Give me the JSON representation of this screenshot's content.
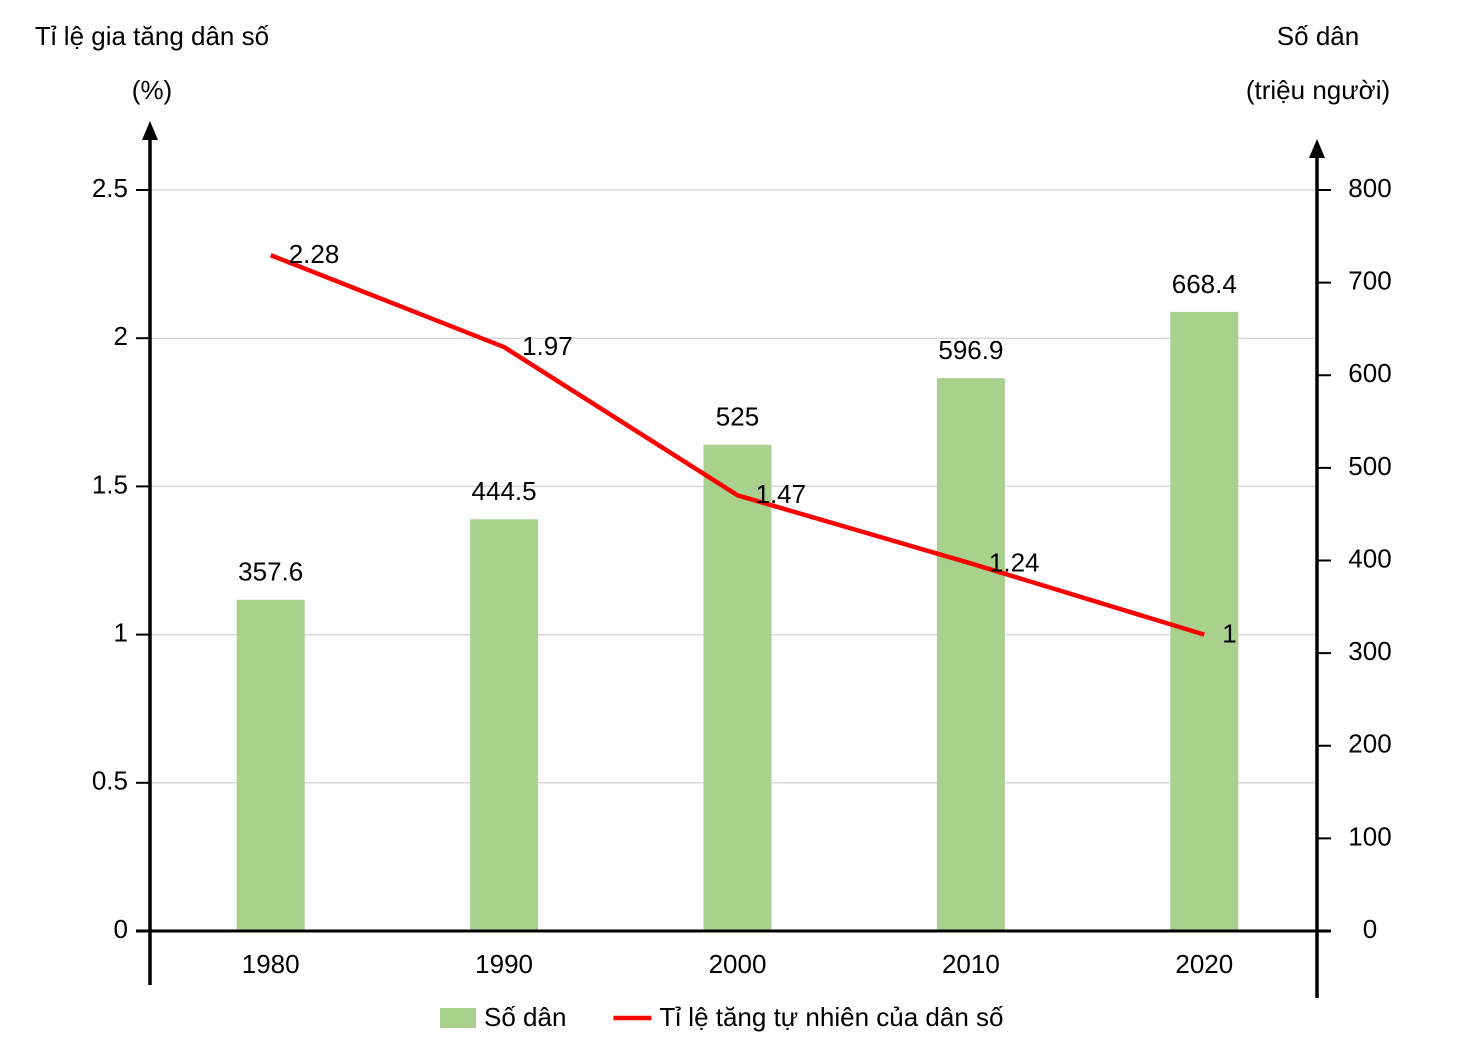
{
  "chart_data": {
    "type": "bar_line",
    "y_title": [
      "Tỉ lệ gia tăng dân số",
      "(%)"
    ],
    "y2_title": [
      "Số dân",
      "(triệu người)"
    ],
    "categories": [
      "1980",
      "1990",
      "2000",
      "2010",
      "2020"
    ],
    "series": [
      {
        "name": "Số dân",
        "type": "bar",
        "axis": "y2",
        "color": "#a9d18e",
        "values": [
          357.6,
          444.5,
          525,
          596.9,
          668.4
        ]
      },
      {
        "name": "Tỉ lệ tăng tự nhiên của dân số",
        "type": "line",
        "axis": "y",
        "color": "#ff0000",
        "values": [
          2.28,
          1.97,
          1.47,
          1.24,
          1
        ]
      }
    ],
    "ylim": [
      0,
      2.5
    ],
    "yticks": [
      0,
      0.5,
      1,
      1.5,
      2,
      2.5
    ],
    "y2lim": [
      0,
      800
    ],
    "y2ticks": [
      0,
      100,
      200,
      300,
      400,
      500,
      600,
      700,
      800
    ],
    "grid": true,
    "legend": "bottom"
  }
}
